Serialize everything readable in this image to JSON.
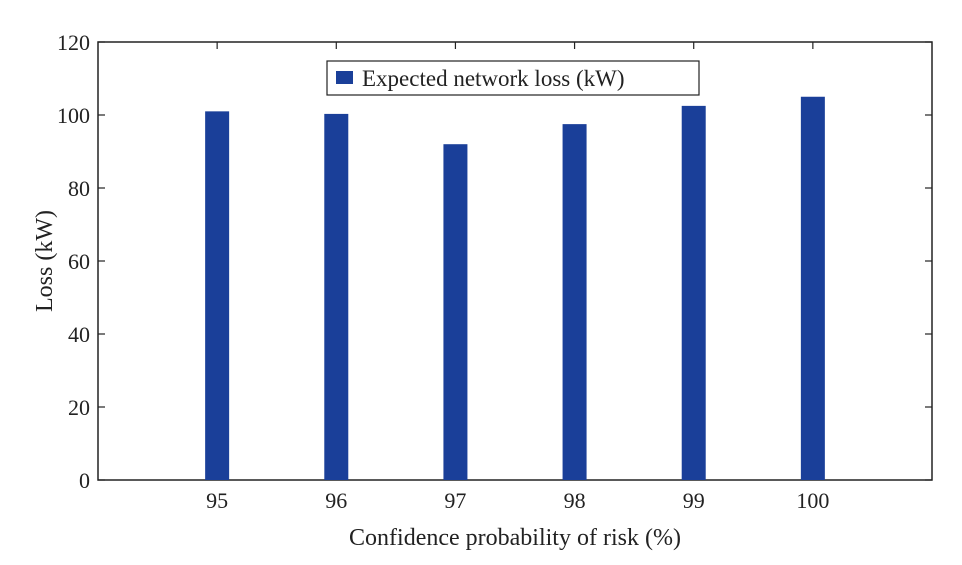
{
  "chart_data": {
    "type": "bar",
    "title": "",
    "xlabel": "Confidence probability of risk (%)",
    "ylabel": "Loss (kW)",
    "categories": [
      "95",
      "96",
      "97",
      "98",
      "99",
      "100"
    ],
    "series": [
      {
        "name": "Expected network loss (kW)",
        "values": [
          101,
          100.3,
          92,
          97.5,
          102.5,
          105
        ],
        "color": "#1a3f99"
      }
    ],
    "ylim": [
      0,
      120
    ],
    "yticks": [
      "0",
      "20",
      "40",
      "60",
      "80",
      "100",
      "120"
    ],
    "grid": false,
    "legend": "top-center"
  }
}
